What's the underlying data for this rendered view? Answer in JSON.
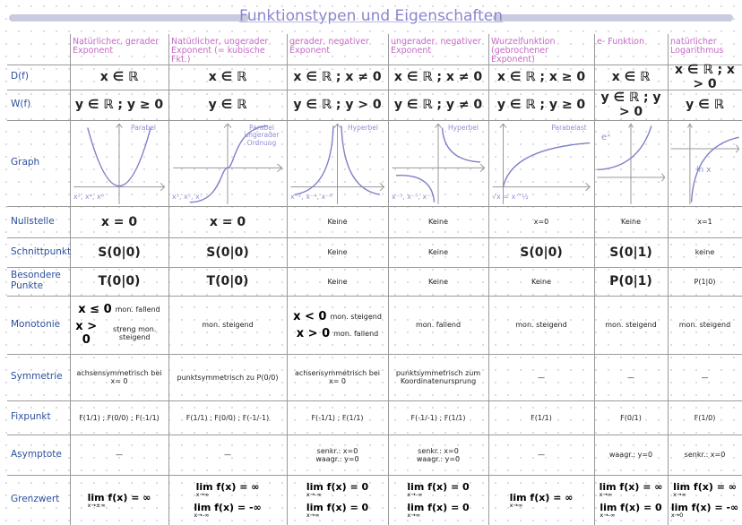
{
  "title": "Funktionstypen und Eigenschaften",
  "columns": [
    "Natürlicher, gerader Exponent",
    "Natürlicher, ungerader Exponent (= kubische Fkt.)",
    "gerader, negativer Exponent",
    "ungerader, negativer Exponent",
    "Wurzelfunktion (gebrochener Exponent)",
    "e- Funktion",
    "natürlicher Logarithmus"
  ],
  "rows": [
    {
      "label": "D(f)",
      "cells": [
        "x ∈ ℝ",
        "x ∈ ℝ",
        "x ∈ ℝ ; x ≠ 0",
        "x ∈ ℝ ; x ≠ 0",
        "x ∈ ℝ ; x ≥ 0",
        "x ∈ ℝ",
        "x ∈ ℝ ; x > 0"
      ]
    },
    {
      "label": "W(f)",
      "cells": [
        "y ∈ ℝ ; y ≥ 0",
        "y ∈ ℝ",
        "y ∈ ℝ ; y > 0",
        "y ∈ ℝ ; y ≠ 0",
        "y ∈ ℝ ; y ≥ 0",
        "y ∈ ℝ ; y > 0",
        "y ∈ ℝ"
      ]
    },
    {
      "label": "Graph",
      "cells": [
        {
          "name": "Parabel",
          "powers": "x², x⁴, x⁶"
        },
        {
          "name": "Parabel ungerader Ordnung",
          "powers": "x³, x⁵, x⁷"
        },
        {
          "name": "Hyperbel",
          "powers": "x⁻², x⁻⁴, x⁻⁶"
        },
        {
          "name": "Hyperbel",
          "powers": "x⁻³, x⁻⁵, x⁻⁷"
        },
        {
          "name": "Parabelast",
          "powers": "√x = x^½"
        },
        {
          "name": "eˣ"
        },
        {
          "name": "ln x"
        }
      ]
    },
    {
      "label": "Nullstelle",
      "cells": [
        "x = 0",
        "x = 0",
        "Keine",
        "Keine",
        "x=0",
        "Keine",
        "x=1"
      ]
    },
    {
      "label": "Schnittpunkt",
      "cells": [
        "S(0|0)",
        "S(0|0)",
        "Keine",
        "Keine",
        "S(0|0)",
        "S(0|1)",
        "keine"
      ]
    },
    {
      "label": "Besondere Punkte",
      "cells": [
        "T(0|0)",
        "T(0|0)",
        "Keine",
        "Keine",
        "Keine",
        "P(0|1)",
        "P(1|0)"
      ]
    },
    {
      "label": "Monotonie",
      "cells": [
        [
          {
            "cond": "x ≤ 0",
            "text": "mon. fallend"
          },
          {
            "cond": "x > 0",
            "text": "streng mon. steigend"
          }
        ],
        "mon. steigend",
        [
          {
            "cond": "x < 0",
            "text": "mon. steigend"
          },
          {
            "cond": "x > 0",
            "text": "mon. fallend"
          }
        ],
        "mon. fallend",
        "mon. steigend",
        "mon. steigend",
        "mon. steigend"
      ]
    },
    {
      "label": "Symmetrie",
      "cells": [
        "achsensymmetrisch bei x= 0",
        "punktsymmetrisch zu P(0/0)",
        "achsensymmetrisch bei x= 0",
        "punktsymmetrisch zum Koordinatenursprung",
        "—",
        "—",
        "—"
      ]
    },
    {
      "label": "Fixpunkt",
      "cells": [
        "F(1/1) ; F(0/0) ; F(-1/1)",
        "F(1/1) ; F(0/0) ; F(-1/-1)",
        "F(-1/1) ; F(1/1)",
        "F(-1/-1) ; F(1/1)",
        "F(1/1)",
        "F(0/1)",
        "F(1/0)"
      ]
    },
    {
      "label": "Asymptote",
      "cells": [
        "—",
        "—",
        [
          "senkr.: x=0",
          "waagr.: y=0"
        ],
        [
          "senkr.: x=0",
          "waagr.: y=0"
        ],
        "—",
        "waagr.: y=0",
        "senkr.: x=0"
      ]
    },
    {
      "label": "Grenzwert",
      "cells": [
        [
          {
            "lim": "lim f(x) = ∞",
            "sub": "x→±∞"
          }
        ],
        [
          {
            "lim": "lim f(x) = ∞",
            "sub": "x→∞"
          },
          {
            "lim": "lim f(x) = -∞",
            "sub": "x→-∞"
          }
        ],
        [
          {
            "lim": "lim f(x) = 0",
            "sub": "x→-∞"
          },
          {
            "lim": "lim f(x) = 0",
            "sub": "x→∞"
          }
        ],
        [
          {
            "lim": "lim f(x) = 0",
            "sub": "x→-∞"
          },
          {
            "lim": "lim f(x) = 0",
            "sub": "x→∞"
          }
        ],
        [
          {
            "lim": "lim f(x) = ∞",
            "sub": "x→∞"
          }
        ],
        [
          {
            "lim": "lim f(x) = ∞",
            "sub": "x→∞"
          },
          {
            "lim": "lim f(x) = 0",
            "sub": "x→-∞"
          }
        ],
        [
          {
            "lim": "lim f(x) = ∞",
            "sub": "x→∞"
          },
          {
            "lim": "lim f(x) = -∞",
            "sub": "x→0"
          }
        ]
      ]
    }
  ]
}
